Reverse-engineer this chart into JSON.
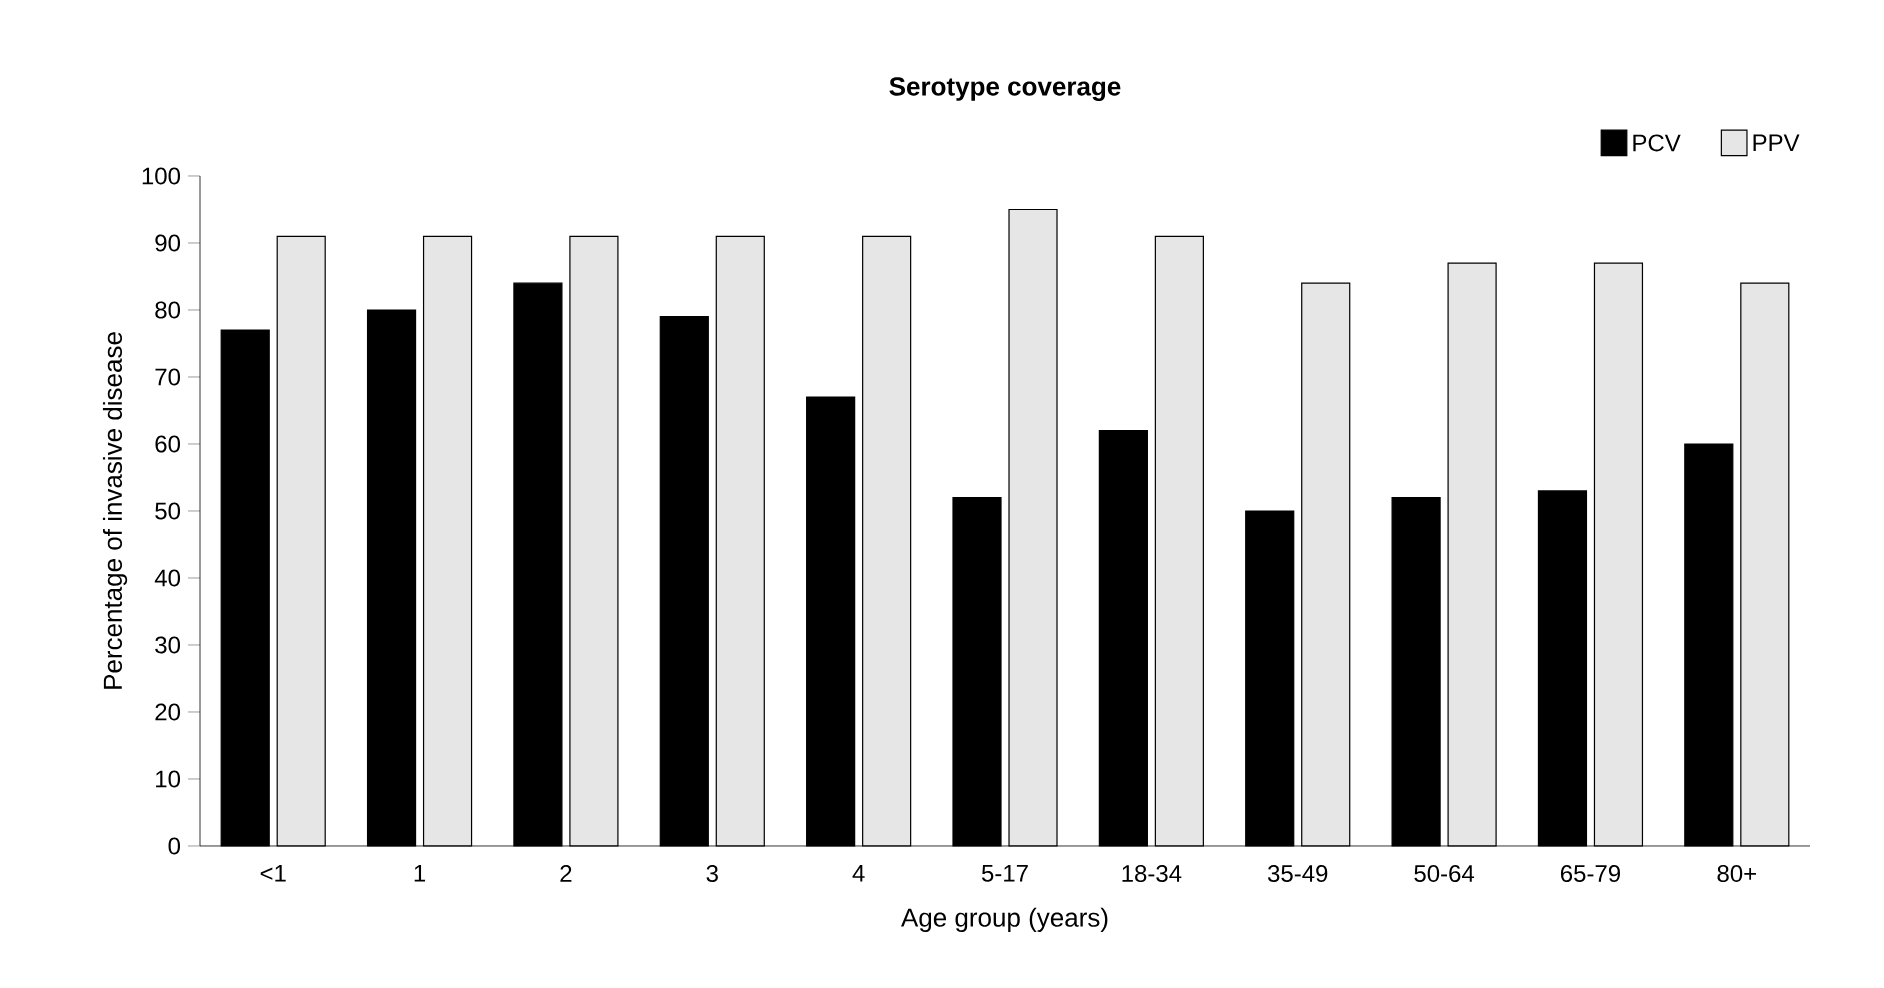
{
  "chart_data": {
    "type": "bar",
    "title": "Serotype coverage",
    "xlabel": "Age group (years)",
    "ylabel": "Percentage of invasive disease",
    "categories": [
      "<1",
      "1",
      "2",
      "3",
      "4",
      "5-17",
      "18-34",
      "35-49",
      "50-64",
      "65-79",
      "80+"
    ],
    "series": [
      {
        "name": "PCV",
        "color": "#000000",
        "values": [
          77,
          80,
          84,
          79,
          67,
          52,
          62,
          50,
          52,
          53,
          60
        ]
      },
      {
        "name": "PPV",
        "color": "#e6e6e6",
        "values": [
          91,
          91,
          91,
          91,
          91,
          95,
          91,
          84,
          87,
          87,
          84
        ]
      }
    ],
    "ylim": [
      0,
      100
    ],
    "yticks": [
      0,
      10,
      20,
      30,
      40,
      50,
      60,
      70,
      80,
      90,
      100
    ],
    "grid": false,
    "legend": "top right"
  }
}
